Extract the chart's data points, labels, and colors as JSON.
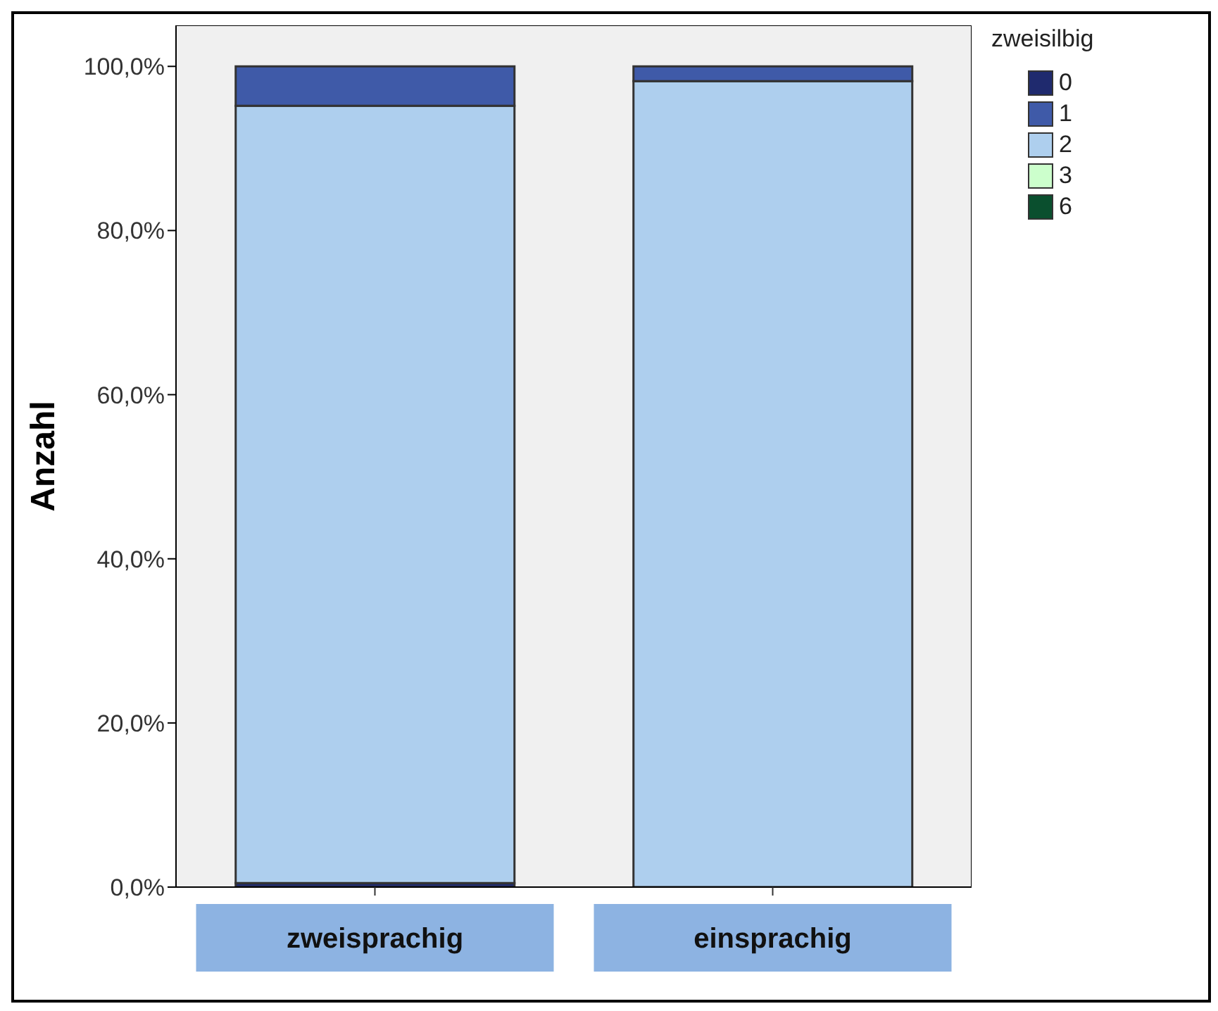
{
  "chart_data": {
    "type": "bar",
    "stacked": true,
    "ylabel": "Anzahl",
    "legend_title": "zweisilbig",
    "legend": "top right",
    "grid": false,
    "categories": [
      "zweisprachig",
      "einsprachig"
    ],
    "ylim": [
      0,
      105
    ],
    "yticks": [
      {
        "value": 0,
        "label": "0,0%"
      },
      {
        "value": 20,
        "label": "20,0%"
      },
      {
        "value": 40,
        "label": "40,0%"
      },
      {
        "value": 60,
        "label": "60,0%"
      },
      {
        "value": 80,
        "label": "80,0%"
      },
      {
        "value": 100,
        "label": "100,0%"
      }
    ],
    "series": [
      {
        "name": "0",
        "color": "#1f2a6e",
        "values": [
          0.5,
          0
        ]
      },
      {
        "name": "2",
        "color": "#aecfee",
        "values": [
          94.7,
          98.2
        ]
      },
      {
        "name": "1",
        "color": "#3f5aa8",
        "values": [
          4.8,
          1.8
        ]
      },
      {
        "name": "3",
        "color": "#ccffcc",
        "values": [
          0,
          0
        ]
      },
      {
        "name": "6",
        "color": "#0a4f2e",
        "values": [
          0,
          0
        ]
      }
    ]
  }
}
